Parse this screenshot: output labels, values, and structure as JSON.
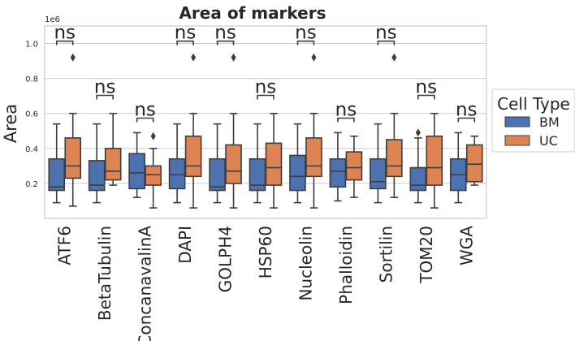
{
  "chart_data": {
    "type": "box",
    "title": "Area of markers",
    "xlabel": "",
    "ylabel": "Area",
    "y_offset_text": "1e6",
    "ylim": [
      0.0,
      1.1
    ],
    "yticks": [
      0.2,
      0.4,
      0.6,
      0.8,
      1.0
    ],
    "ytick_labels": [
      "0.2",
      "0.4",
      "0.6",
      "0.8",
      "1.0"
    ],
    "grid": "horizontal",
    "legend": {
      "title": "Cell Type",
      "placement": "right-outside"
    },
    "categories": [
      "ATF6",
      "BetaTubulin",
      "ConcanavalinA",
      "DAPI",
      "GOLPH4",
      "HSP60",
      "Nucleolin",
      "Phalloidin",
      "Sortilin",
      "TOM20",
      "WGA"
    ],
    "series": [
      {
        "name": "BM",
        "color": "#4c72b0",
        "boxes": [
          {
            "whislo": 0.09,
            "q1": 0.16,
            "med": 0.18,
            "q3": 0.34,
            "whishi": 0.54,
            "fliers": []
          },
          {
            "whislo": 0.09,
            "q1": 0.16,
            "med": 0.19,
            "q3": 0.33,
            "whishi": 0.54,
            "fliers": []
          },
          {
            "whislo": 0.12,
            "q1": 0.17,
            "med": 0.26,
            "q3": 0.37,
            "whishi": 0.49,
            "fliers": []
          },
          {
            "whislo": 0.09,
            "q1": 0.17,
            "med": 0.25,
            "q3": 0.34,
            "whishi": 0.54,
            "fliers": []
          },
          {
            "whislo": 0.09,
            "q1": 0.16,
            "med": 0.18,
            "q3": 0.34,
            "whishi": 0.54,
            "fliers": []
          },
          {
            "whislo": 0.09,
            "q1": 0.16,
            "med": 0.19,
            "q3": 0.34,
            "whishi": 0.54,
            "fliers": []
          },
          {
            "whislo": 0.09,
            "q1": 0.16,
            "med": 0.24,
            "q3": 0.36,
            "whishi": 0.54,
            "fliers": []
          },
          {
            "whislo": 0.1,
            "q1": 0.18,
            "med": 0.27,
            "q3": 0.34,
            "whishi": 0.49,
            "fliers": []
          },
          {
            "whislo": 0.09,
            "q1": 0.17,
            "med": 0.21,
            "q3": 0.34,
            "whishi": 0.54,
            "fliers": []
          },
          {
            "whislo": 0.09,
            "q1": 0.16,
            "med": 0.19,
            "q3": 0.29,
            "whishi": 0.46,
            "fliers": [
              0.49
            ]
          },
          {
            "whislo": 0.09,
            "q1": 0.16,
            "med": 0.25,
            "q3": 0.34,
            "whishi": 0.49,
            "fliers": []
          }
        ]
      },
      {
        "name": "UC",
        "color": "#dd8452",
        "boxes": [
          {
            "whislo": 0.07,
            "q1": 0.23,
            "med": 0.3,
            "q3": 0.46,
            "whishi": 0.6,
            "fliers": [
              0.92
            ]
          },
          {
            "whislo": 0.19,
            "q1": 0.22,
            "med": 0.27,
            "q3": 0.4,
            "whishi": 0.6,
            "fliers": []
          },
          {
            "whislo": 0.06,
            "q1": 0.19,
            "med": 0.25,
            "q3": 0.3,
            "whishi": 0.4,
            "fliers": [
              0.47
            ]
          },
          {
            "whislo": 0.06,
            "q1": 0.24,
            "med": 0.3,
            "q3": 0.47,
            "whishi": 0.6,
            "fliers": [
              0.92
            ]
          },
          {
            "whislo": 0.06,
            "q1": 0.2,
            "med": 0.27,
            "q3": 0.42,
            "whishi": 0.6,
            "fliers": [
              0.92
            ]
          },
          {
            "whislo": 0.06,
            "q1": 0.19,
            "med": 0.29,
            "q3": 0.43,
            "whishi": 0.6,
            "fliers": []
          },
          {
            "whislo": 0.06,
            "q1": 0.24,
            "med": 0.3,
            "q3": 0.46,
            "whishi": 0.6,
            "fliers": [
              0.92
            ]
          },
          {
            "whislo": 0.12,
            "q1": 0.22,
            "med": 0.29,
            "q3": 0.38,
            "whishi": 0.47,
            "fliers": []
          },
          {
            "whislo": 0.12,
            "q1": 0.24,
            "med": 0.3,
            "q3": 0.45,
            "whishi": 0.6,
            "fliers": [
              0.92
            ]
          },
          {
            "whislo": 0.06,
            "q1": 0.19,
            "med": 0.29,
            "q3": 0.47,
            "whishi": 0.6,
            "fliers": []
          },
          {
            "whislo": 0.19,
            "q1": 0.21,
            "med": 0.31,
            "q3": 0.42,
            "whishi": 0.47,
            "fliers": []
          }
        ]
      }
    ],
    "annotations": [
      {
        "category": "ATF6",
        "text": "ns",
        "y": 0.99
      },
      {
        "category": "BetaTubulin",
        "text": "ns",
        "y": 0.68
      },
      {
        "category": "ConcanavalinA",
        "text": "ns",
        "y": 0.55
      },
      {
        "category": "DAPI",
        "text": "ns",
        "y": 0.99
      },
      {
        "category": "GOLPH4",
        "text": "ns",
        "y": 0.99
      },
      {
        "category": "HSP60",
        "text": "ns",
        "y": 0.68
      },
      {
        "category": "Nucleolin",
        "text": "ns",
        "y": 0.99
      },
      {
        "category": "Phalloidin",
        "text": "ns",
        "y": 0.55
      },
      {
        "category": "Sortilin",
        "text": "ns",
        "y": 0.99
      },
      {
        "category": "TOM20",
        "text": "ns",
        "y": 0.68
      },
      {
        "category": "WGA",
        "text": "ns",
        "y": 0.55
      }
    ]
  }
}
